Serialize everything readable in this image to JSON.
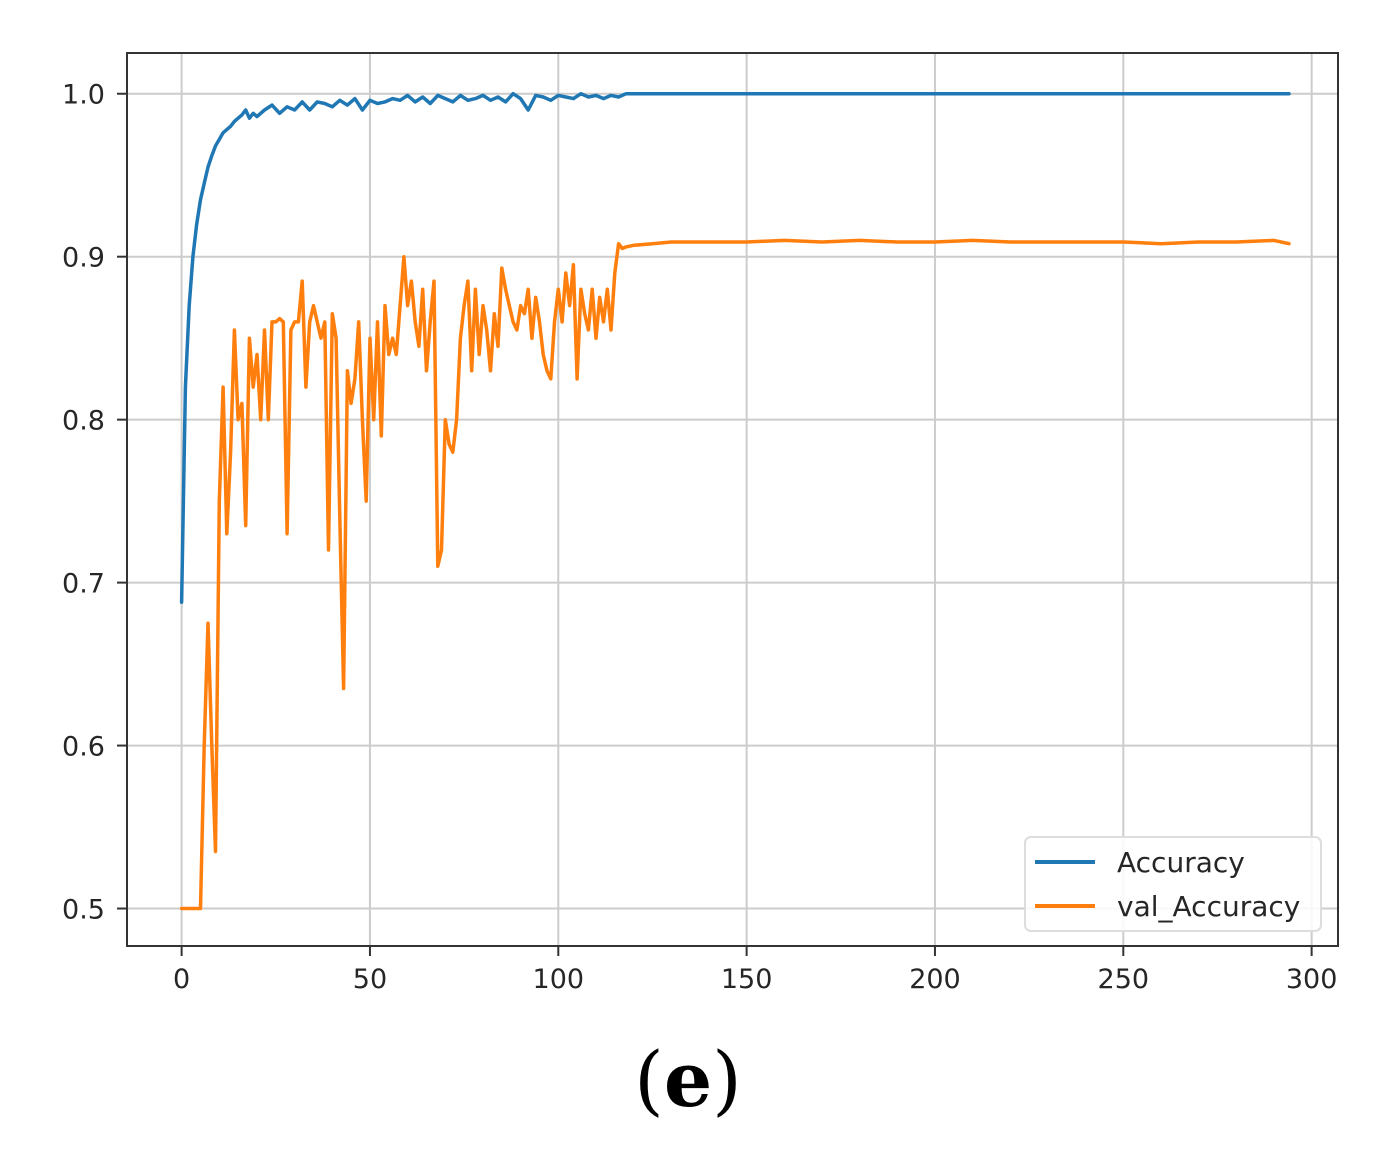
{
  "caption": {
    "open": "(",
    "letter": "e",
    "close": ")"
  },
  "chart_data": {
    "type": "line",
    "title": "",
    "xlabel": "",
    "ylabel": "",
    "xlim": [
      -14.5,
      307
    ],
    "ylim": [
      0.477,
      1.025
    ],
    "xticks": [
      0,
      50,
      100,
      150,
      200,
      250,
      300
    ],
    "yticks": [
      0.5,
      0.6,
      0.7,
      0.8,
      0.9,
      1.0
    ],
    "xtick_labels": [
      "0",
      "50",
      "100",
      "150",
      "200",
      "250",
      "300"
    ],
    "ytick_labels": [
      "0.5",
      "0.6",
      "0.7",
      "0.8",
      "0.9",
      "1.0"
    ],
    "grid": true,
    "legend": "lower-right",
    "colors": {
      "accuracy": "#1f77b4",
      "val_accuracy": "#ff7f0e",
      "grid": "#cccccc",
      "axes": "#333333"
    },
    "series": [
      {
        "name": "Accuracy",
        "x": [
          0,
          1,
          2,
          3,
          4,
          5,
          6,
          7,
          8,
          9,
          10,
          11,
          12,
          13,
          14,
          15,
          16,
          17,
          18,
          19,
          20,
          22,
          24,
          26,
          28,
          30,
          32,
          34,
          36,
          38,
          40,
          42,
          44,
          46,
          48,
          50,
          52,
          54,
          56,
          58,
          60,
          62,
          64,
          66,
          68,
          70,
          72,
          74,
          76,
          78,
          80,
          82,
          84,
          86,
          88,
          90,
          92,
          94,
          96,
          98,
          100,
          102,
          104,
          106,
          108,
          110,
          112,
          114,
          116,
          118,
          120,
          150,
          200,
          250,
          294
        ],
        "values": [
          0.688,
          0.82,
          0.87,
          0.9,
          0.92,
          0.935,
          0.945,
          0.955,
          0.962,
          0.968,
          0.972,
          0.976,
          0.978,
          0.98,
          0.983,
          0.985,
          0.987,
          0.99,
          0.985,
          0.988,
          0.986,
          0.99,
          0.993,
          0.988,
          0.992,
          0.99,
          0.995,
          0.99,
          0.995,
          0.994,
          0.992,
          0.996,
          0.993,
          0.997,
          0.99,
          0.996,
          0.994,
          0.995,
          0.997,
          0.996,
          0.999,
          0.995,
          0.998,
          0.994,
          0.999,
          0.997,
          0.995,
          0.999,
          0.996,
          0.997,
          0.999,
          0.996,
          0.998,
          0.995,
          1.0,
          0.997,
          0.99,
          0.999,
          0.998,
          0.996,
          0.999,
          0.998,
          0.997,
          1.0,
          0.998,
          0.999,
          0.997,
          0.999,
          0.998,
          1.0,
          1.0,
          1.0,
          1.0,
          1.0,
          1.0
        ]
      },
      {
        "name": "val_Accuracy",
        "x": [
          0,
          1,
          2,
          3,
          4,
          5,
          6,
          7,
          8,
          9,
          10,
          11,
          12,
          13,
          14,
          15,
          16,
          17,
          18,
          19,
          20,
          21,
          22,
          23,
          24,
          25,
          26,
          27,
          28,
          29,
          30,
          31,
          32,
          33,
          34,
          35,
          36,
          37,
          38,
          39,
          40,
          41,
          42,
          43,
          44,
          45,
          46,
          47,
          48,
          49,
          50,
          51,
          52,
          53,
          54,
          55,
          56,
          57,
          58,
          59,
          60,
          61,
          62,
          63,
          64,
          65,
          66,
          67,
          68,
          69,
          70,
          71,
          72,
          73,
          74,
          75,
          76,
          77,
          78,
          79,
          80,
          81,
          82,
          83,
          84,
          85,
          86,
          87,
          88,
          89,
          90,
          91,
          92,
          93,
          94,
          95,
          96,
          97,
          98,
          99,
          100,
          101,
          102,
          103,
          104,
          105,
          106,
          107,
          108,
          109,
          110,
          111,
          112,
          113,
          114,
          115,
          116,
          117,
          118,
          120,
          125,
          130,
          135,
          140,
          150,
          160,
          170,
          180,
          190,
          200,
          210,
          220,
          230,
          240,
          250,
          260,
          270,
          280,
          290,
          294
        ],
        "values": [
          0.5,
          0.5,
          0.5,
          0.5,
          0.5,
          0.5,
          0.6,
          0.675,
          0.6,
          0.535,
          0.75,
          0.82,
          0.73,
          0.78,
          0.855,
          0.8,
          0.81,
          0.735,
          0.85,
          0.82,
          0.84,
          0.8,
          0.855,
          0.8,
          0.86,
          0.86,
          0.862,
          0.86,
          0.73,
          0.855,
          0.86,
          0.86,
          0.885,
          0.82,
          0.86,
          0.87,
          0.86,
          0.85,
          0.86,
          0.72,
          0.865,
          0.85,
          0.74,
          0.635,
          0.83,
          0.81,
          0.825,
          0.86,
          0.8,
          0.75,
          0.85,
          0.8,
          0.86,
          0.79,
          0.87,
          0.84,
          0.85,
          0.84,
          0.87,
          0.9,
          0.87,
          0.885,
          0.86,
          0.845,
          0.88,
          0.83,
          0.86,
          0.885,
          0.71,
          0.72,
          0.8,
          0.785,
          0.78,
          0.8,
          0.85,
          0.87,
          0.885,
          0.83,
          0.88,
          0.84,
          0.87,
          0.855,
          0.83,
          0.865,
          0.845,
          0.893,
          0.88,
          0.87,
          0.86,
          0.855,
          0.87,
          0.865,
          0.88,
          0.85,
          0.875,
          0.86,
          0.84,
          0.83,
          0.825,
          0.86,
          0.88,
          0.86,
          0.89,
          0.87,
          0.895,
          0.825,
          0.88,
          0.865,
          0.855,
          0.88,
          0.85,
          0.875,
          0.86,
          0.88,
          0.855,
          0.89,
          0.908,
          0.905,
          0.906,
          0.907,
          0.908,
          0.909,
          0.909,
          0.909,
          0.909,
          0.91,
          0.909,
          0.91,
          0.909,
          0.909,
          0.91,
          0.909,
          0.909,
          0.909,
          0.909,
          0.908,
          0.909,
          0.909,
          0.91,
          0.908
        ]
      }
    ]
  }
}
